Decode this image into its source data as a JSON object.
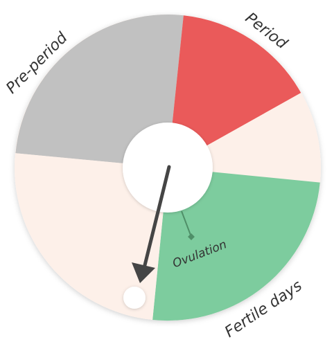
{
  "labels": {
    "period": "Period",
    "pre_period": "Pre-period",
    "fertile_days": "Fertile days",
    "ovulation": "Ovulation"
  },
  "colors": {
    "period": "#ea5a5a",
    "pre_period": "#c1c1c1",
    "fertile_days": "#7dcc9e",
    "neutral": "#fdf0e9",
    "center": "#ffffff",
    "arrow": "#454545",
    "ovulation_marker": "#4f8f68"
  },
  "icons": {
    "arrow": "pointer-arrow-icon",
    "day_marker": "current-day-marker-icon",
    "ovulation_marker": "ovulation-marker-icon"
  }
}
